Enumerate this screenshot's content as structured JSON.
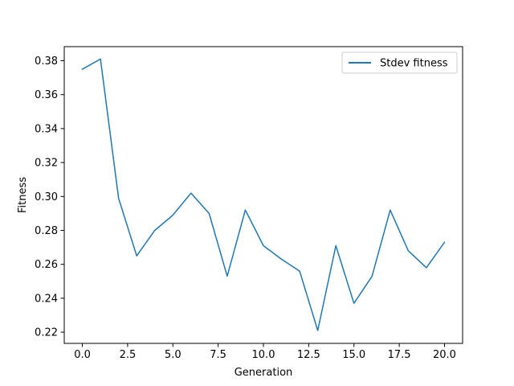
{
  "chart_data": {
    "type": "line",
    "title": "",
    "xlabel": "Generation",
    "ylabel": "Fitness",
    "xlim": [
      -1.0,
      21.0
    ],
    "ylim": [
      0.2134,
      0.3883
    ],
    "xticks": [
      0.0,
      2.5,
      5.0,
      7.5,
      10.0,
      12.5,
      15.0,
      17.5,
      20.0
    ],
    "xtick_labels": [
      "0.0",
      "2.5",
      "5.0",
      "7.5",
      "10.0",
      "12.5",
      "15.0",
      "17.5",
      "20.0"
    ],
    "yticks": [
      0.22,
      0.24,
      0.26,
      0.28,
      0.3,
      0.32,
      0.34,
      0.36,
      0.38
    ],
    "ytick_labels": [
      "0.22",
      "0.24",
      "0.26",
      "0.28",
      "0.30",
      "0.32",
      "0.34",
      "0.36",
      "0.38"
    ],
    "grid": false,
    "legend_position": "upper-right",
    "series": [
      {
        "name": "Stdev fitness",
        "color": "#1f77b4",
        "x": [
          0,
          1,
          2,
          3,
          4,
          5,
          6,
          7,
          8,
          9,
          10,
          11,
          12,
          13,
          14,
          15,
          16,
          17,
          18,
          19,
          20
        ],
        "y": [
          0.375,
          0.381,
          0.299,
          0.265,
          0.28,
          0.289,
          0.302,
          0.29,
          0.253,
          0.292,
          0.271,
          0.263,
          0.256,
          0.221,
          0.271,
          0.237,
          0.253,
          0.292,
          0.268,
          0.258,
          0.273
        ]
      }
    ]
  }
}
